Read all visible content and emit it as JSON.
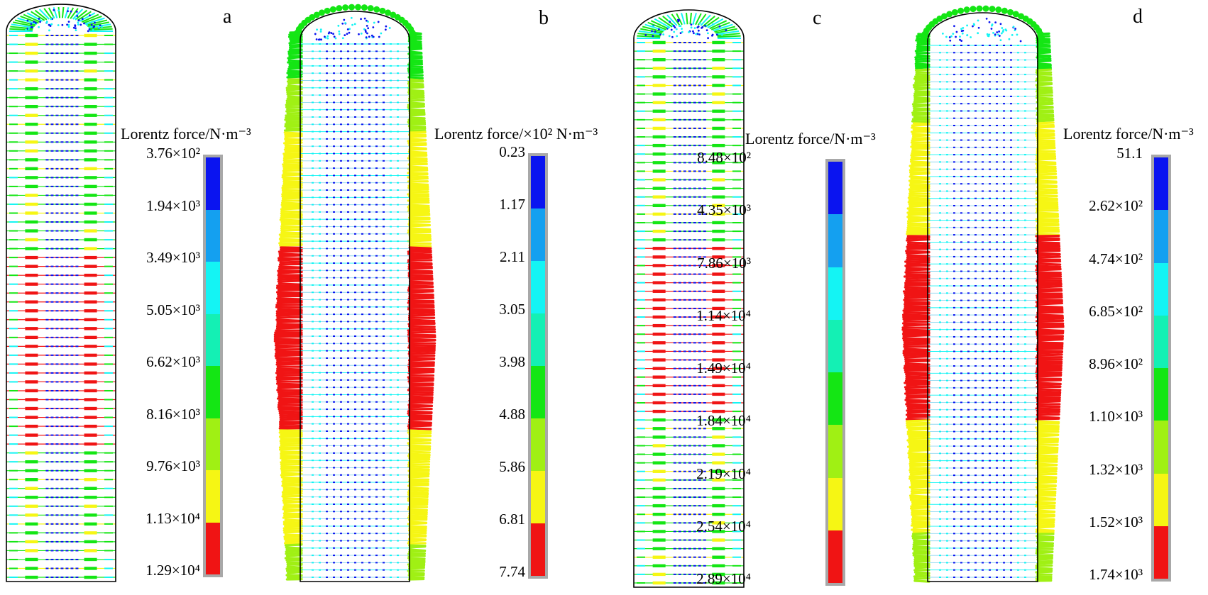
{
  "colors": {
    "scale": [
      "#0a14f0",
      "#14a0f0",
      "#14f4f4",
      "#14f0b4",
      "#14e614",
      "#a0f014",
      "#f6f614",
      "#f01414"
    ],
    "outline": "#000000",
    "legend_border": "#a8a8a8"
  },
  "panels": [
    {
      "id": "a",
      "label": "a",
      "legend_title": "Lorentz force/N·m⁻³",
      "ticks": [
        "3.76×10²",
        "1.94×10³",
        "3.49×10³",
        "5.05×10³",
        "6.62×10³",
        "8.16×10³",
        "9.76×10³",
        "1.13×10⁴",
        "1.29×10⁴"
      ],
      "pattern": "inner",
      "arrow_style": "lines",
      "red_band": [
        0.4,
        0.76
      ]
    },
    {
      "id": "b",
      "label": "b",
      "legend_title": "Lorentz force/×10² N·m⁻³",
      "ticks": [
        "0.23",
        "1.17",
        "2.11",
        "3.05",
        "3.98",
        "4.88",
        "5.86",
        "6.81",
        "7.74"
      ],
      "pattern": "outer",
      "arrow_style": "dots",
      "red_band": [
        0.38,
        0.72
      ]
    },
    {
      "id": "c",
      "label": "c",
      "legend_title": "Lorentz force/N·m⁻³",
      "ticks": [
        "8.48×10²",
        "4.35×10³",
        "7.86×10³",
        "1.14×10⁴",
        "1.49×10⁴",
        "1.84×10⁴",
        "2.19×10⁴",
        "2.54×10⁴",
        "2.89×10⁴"
      ],
      "pattern": "inner",
      "arrow_style": "lines",
      "red_band": [
        0.38,
        0.68
      ]
    },
    {
      "id": "d",
      "label": "d",
      "legend_title": "Lorentz force/N·m⁻³",
      "ticks": [
        "51.1",
        "2.62×10²",
        "4.74×10²",
        "6.85×10²",
        "8.96×10²",
        "1.10×10³",
        "1.32×10³",
        "1.52×10³",
        "1.74×10³"
      ],
      "pattern": "outer",
      "arrow_style": "dots",
      "red_band": [
        0.36,
        0.7
      ]
    }
  ]
}
